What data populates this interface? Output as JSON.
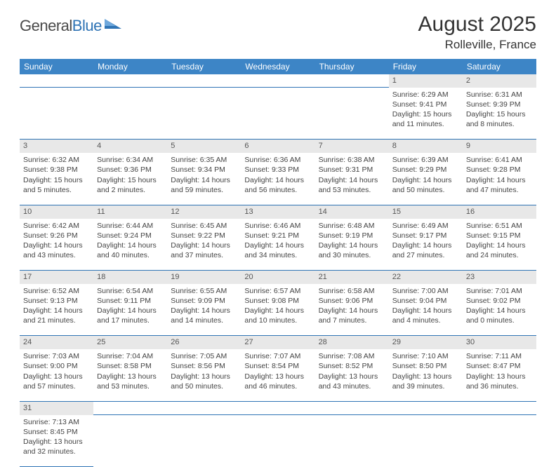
{
  "logo": {
    "text1": "General",
    "text2": "Blue"
  },
  "title": "August 2025",
  "location": "Rolleville, France",
  "colors": {
    "header_bg": "#3d85c6",
    "header_text": "#ffffff",
    "daynum_bg": "#e8e8e8",
    "border": "#2f74b5",
    "logo_blue": "#2f74b5",
    "text": "#333333"
  },
  "weekday_labels": [
    "Sunday",
    "Monday",
    "Tuesday",
    "Wednesday",
    "Thursday",
    "Friday",
    "Saturday"
  ],
  "weeks": [
    [
      null,
      null,
      null,
      null,
      null,
      {
        "n": "1",
        "sr": "Sunrise: 6:29 AM",
        "ss": "Sunset: 9:41 PM",
        "d1": "Daylight: 15 hours",
        "d2": "and 11 minutes."
      },
      {
        "n": "2",
        "sr": "Sunrise: 6:31 AM",
        "ss": "Sunset: 9:39 PM",
        "d1": "Daylight: 15 hours",
        "d2": "and 8 minutes."
      }
    ],
    [
      {
        "n": "3",
        "sr": "Sunrise: 6:32 AM",
        "ss": "Sunset: 9:38 PM",
        "d1": "Daylight: 15 hours",
        "d2": "and 5 minutes."
      },
      {
        "n": "4",
        "sr": "Sunrise: 6:34 AM",
        "ss": "Sunset: 9:36 PM",
        "d1": "Daylight: 15 hours",
        "d2": "and 2 minutes."
      },
      {
        "n": "5",
        "sr": "Sunrise: 6:35 AM",
        "ss": "Sunset: 9:34 PM",
        "d1": "Daylight: 14 hours",
        "d2": "and 59 minutes."
      },
      {
        "n": "6",
        "sr": "Sunrise: 6:36 AM",
        "ss": "Sunset: 9:33 PM",
        "d1": "Daylight: 14 hours",
        "d2": "and 56 minutes."
      },
      {
        "n": "7",
        "sr": "Sunrise: 6:38 AM",
        "ss": "Sunset: 9:31 PM",
        "d1": "Daylight: 14 hours",
        "d2": "and 53 minutes."
      },
      {
        "n": "8",
        "sr": "Sunrise: 6:39 AM",
        "ss": "Sunset: 9:29 PM",
        "d1": "Daylight: 14 hours",
        "d2": "and 50 minutes."
      },
      {
        "n": "9",
        "sr": "Sunrise: 6:41 AM",
        "ss": "Sunset: 9:28 PM",
        "d1": "Daylight: 14 hours",
        "d2": "and 47 minutes."
      }
    ],
    [
      {
        "n": "10",
        "sr": "Sunrise: 6:42 AM",
        "ss": "Sunset: 9:26 PM",
        "d1": "Daylight: 14 hours",
        "d2": "and 43 minutes."
      },
      {
        "n": "11",
        "sr": "Sunrise: 6:44 AM",
        "ss": "Sunset: 9:24 PM",
        "d1": "Daylight: 14 hours",
        "d2": "and 40 minutes."
      },
      {
        "n": "12",
        "sr": "Sunrise: 6:45 AM",
        "ss": "Sunset: 9:22 PM",
        "d1": "Daylight: 14 hours",
        "d2": "and 37 minutes."
      },
      {
        "n": "13",
        "sr": "Sunrise: 6:46 AM",
        "ss": "Sunset: 9:21 PM",
        "d1": "Daylight: 14 hours",
        "d2": "and 34 minutes."
      },
      {
        "n": "14",
        "sr": "Sunrise: 6:48 AM",
        "ss": "Sunset: 9:19 PM",
        "d1": "Daylight: 14 hours",
        "d2": "and 30 minutes."
      },
      {
        "n": "15",
        "sr": "Sunrise: 6:49 AM",
        "ss": "Sunset: 9:17 PM",
        "d1": "Daylight: 14 hours",
        "d2": "and 27 minutes."
      },
      {
        "n": "16",
        "sr": "Sunrise: 6:51 AM",
        "ss": "Sunset: 9:15 PM",
        "d1": "Daylight: 14 hours",
        "d2": "and 24 minutes."
      }
    ],
    [
      {
        "n": "17",
        "sr": "Sunrise: 6:52 AM",
        "ss": "Sunset: 9:13 PM",
        "d1": "Daylight: 14 hours",
        "d2": "and 21 minutes."
      },
      {
        "n": "18",
        "sr": "Sunrise: 6:54 AM",
        "ss": "Sunset: 9:11 PM",
        "d1": "Daylight: 14 hours",
        "d2": "and 17 minutes."
      },
      {
        "n": "19",
        "sr": "Sunrise: 6:55 AM",
        "ss": "Sunset: 9:09 PM",
        "d1": "Daylight: 14 hours",
        "d2": "and 14 minutes."
      },
      {
        "n": "20",
        "sr": "Sunrise: 6:57 AM",
        "ss": "Sunset: 9:08 PM",
        "d1": "Daylight: 14 hours",
        "d2": "and 10 minutes."
      },
      {
        "n": "21",
        "sr": "Sunrise: 6:58 AM",
        "ss": "Sunset: 9:06 PM",
        "d1": "Daylight: 14 hours",
        "d2": "and 7 minutes."
      },
      {
        "n": "22",
        "sr": "Sunrise: 7:00 AM",
        "ss": "Sunset: 9:04 PM",
        "d1": "Daylight: 14 hours",
        "d2": "and 4 minutes."
      },
      {
        "n": "23",
        "sr": "Sunrise: 7:01 AM",
        "ss": "Sunset: 9:02 PM",
        "d1": "Daylight: 14 hours",
        "d2": "and 0 minutes."
      }
    ],
    [
      {
        "n": "24",
        "sr": "Sunrise: 7:03 AM",
        "ss": "Sunset: 9:00 PM",
        "d1": "Daylight: 13 hours",
        "d2": "and 57 minutes."
      },
      {
        "n": "25",
        "sr": "Sunrise: 7:04 AM",
        "ss": "Sunset: 8:58 PM",
        "d1": "Daylight: 13 hours",
        "d2": "and 53 minutes."
      },
      {
        "n": "26",
        "sr": "Sunrise: 7:05 AM",
        "ss": "Sunset: 8:56 PM",
        "d1": "Daylight: 13 hours",
        "d2": "and 50 minutes."
      },
      {
        "n": "27",
        "sr": "Sunrise: 7:07 AM",
        "ss": "Sunset: 8:54 PM",
        "d1": "Daylight: 13 hours",
        "d2": "and 46 minutes."
      },
      {
        "n": "28",
        "sr": "Sunrise: 7:08 AM",
        "ss": "Sunset: 8:52 PM",
        "d1": "Daylight: 13 hours",
        "d2": "and 43 minutes."
      },
      {
        "n": "29",
        "sr": "Sunrise: 7:10 AM",
        "ss": "Sunset: 8:50 PM",
        "d1": "Daylight: 13 hours",
        "d2": "and 39 minutes."
      },
      {
        "n": "30",
        "sr": "Sunrise: 7:11 AM",
        "ss": "Sunset: 8:47 PM",
        "d1": "Daylight: 13 hours",
        "d2": "and 36 minutes."
      }
    ],
    [
      {
        "n": "31",
        "sr": "Sunrise: 7:13 AM",
        "ss": "Sunset: 8:45 PM",
        "d1": "Daylight: 13 hours",
        "d2": "and 32 minutes."
      },
      null,
      null,
      null,
      null,
      null,
      null
    ]
  ]
}
